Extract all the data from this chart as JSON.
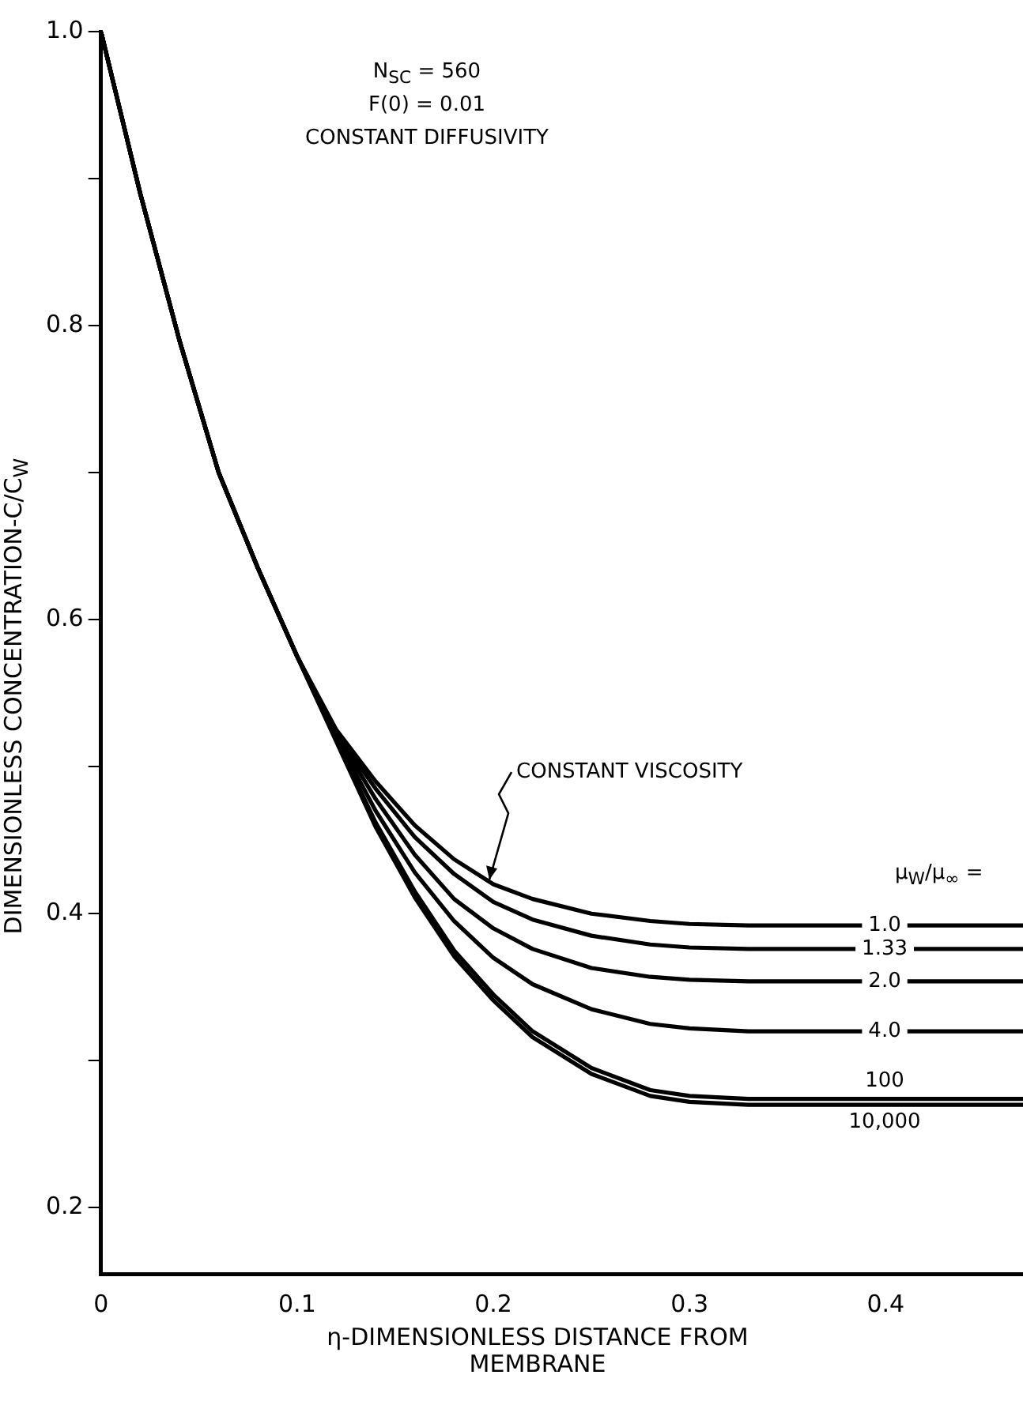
{
  "chart_data": {
    "type": "line",
    "xlabel": "η-DIMENSIONLESS DISTANCE FROM MEMBRANE",
    "ylabel": "DIMENSIONLESS CONCENTRATION-C/C$_{W}$",
    "legend_title": "μ$_{W}$/μ$_{∞}$ =",
    "annotations": [
      "N$_{SC}$ = 560",
      "F(0) = 0.01",
      "CONSTANT DIFFUSIVITY",
      {
        "text": "CONSTANT VISCOSITY",
        "x": 0.198,
        "y": 0.421
      }
    ],
    "x": [
      0,
      0.02,
      0.04,
      0.06,
      0.08,
      0.1,
      0.12,
      0.14,
      0.16,
      0.18,
      0.2,
      0.22,
      0.25,
      0.28,
      0.3,
      0.33,
      0.47
    ],
    "series": [
      {
        "name": "1.0",
        "color": "#000000",
        "values": [
          1.0,
          0.89,
          0.79,
          0.7,
          0.635,
          0.575,
          0.525,
          0.49,
          0.46,
          0.437,
          0.42,
          0.41,
          0.4,
          0.395,
          0.393,
          0.392,
          0.392
        ]
      },
      {
        "name": "1.33",
        "color": "#000000",
        "values": [
          1.0,
          0.89,
          0.79,
          0.7,
          0.635,
          0.575,
          0.523,
          0.485,
          0.452,
          0.427,
          0.408,
          0.396,
          0.385,
          0.379,
          0.377,
          0.376,
          0.376
        ]
      },
      {
        "name": "2.0",
        "color": "#000000",
        "values": [
          1.0,
          0.89,
          0.79,
          0.7,
          0.635,
          0.575,
          0.522,
          0.478,
          0.44,
          0.41,
          0.39,
          0.376,
          0.363,
          0.357,
          0.355,
          0.354,
          0.354
        ]
      },
      {
        "name": "4.0",
        "color": "#000000",
        "values": [
          1.0,
          0.89,
          0.79,
          0.7,
          0.635,
          0.575,
          0.52,
          0.47,
          0.428,
          0.395,
          0.37,
          0.352,
          0.335,
          0.325,
          0.322,
          0.32,
          0.32
        ]
      },
      {
        "name": "100",
        "color": "#000000",
        "values": [
          1.0,
          0.89,
          0.79,
          0.7,
          0.635,
          0.575,
          0.518,
          0.462,
          0.415,
          0.375,
          0.345,
          0.32,
          0.295,
          0.28,
          0.276,
          0.274,
          0.274
        ]
      },
      {
        "name": "10,000",
        "color": "#000000",
        "values": [
          1.0,
          0.89,
          0.79,
          0.7,
          0.635,
          0.575,
          0.517,
          0.459,
          0.411,
          0.371,
          0.341,
          0.316,
          0.291,
          0.276,
          0.272,
          0.27,
          0.27
        ]
      }
    ],
    "xlim": [
      0,
      0.47
    ],
    "xticks": [
      {
        "value": 0,
        "label": "0"
      },
      0.1,
      0.2,
      0.3,
      0.4
    ],
    "ylim": [
      0.155,
      1.0
    ],
    "yticks": [
      0.2,
      {
        "value": 0.3,
        "label": null
      },
      0.4,
      {
        "value": 0.5,
        "label": null
      },
      0.6,
      {
        "value": 0.7,
        "label": null
      },
      0.8,
      {
        "value": 0.9,
        "label": null
      },
      {
        "value": 1.0,
        "label": "1.0"
      }
    ],
    "grid": false,
    "legend": false,
    "marker": "none",
    "line_style": "solid"
  }
}
